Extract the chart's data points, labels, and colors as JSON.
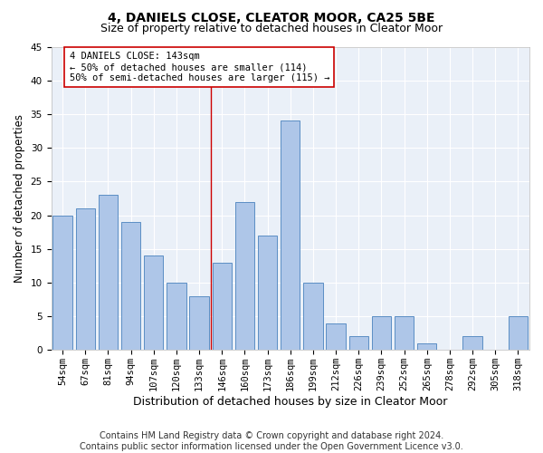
{
  "title": "4, DANIELS CLOSE, CLEATOR MOOR, CA25 5BE",
  "subtitle": "Size of property relative to detached houses in Cleator Moor",
  "xlabel": "Distribution of detached houses by size in Cleator Moor",
  "ylabel": "Number of detached properties",
  "categories": [
    "54sqm",
    "67sqm",
    "81sqm",
    "94sqm",
    "107sqm",
    "120sqm",
    "133sqm",
    "146sqm",
    "160sqm",
    "173sqm",
    "186sqm",
    "199sqm",
    "212sqm",
    "226sqm",
    "239sqm",
    "252sqm",
    "265sqm",
    "278sqm",
    "292sqm",
    "305sqm",
    "318sqm"
  ],
  "values": [
    20,
    21,
    23,
    19,
    14,
    10,
    8,
    13,
    22,
    17,
    34,
    10,
    4,
    2,
    5,
    5,
    1,
    0,
    2,
    0,
    5
  ],
  "bar_color": "#aec6e8",
  "bar_edge_color": "#5b8ec4",
  "vline_color": "#cc0000",
  "annotation_text": "4 DANIELS CLOSE: 143sqm\n← 50% of detached houses are smaller (114)\n50% of semi-detached houses are larger (115) →",
  "annotation_box_color": "#ffffff",
  "annotation_box_edge_color": "#cc0000",
  "ylim": [
    0,
    45
  ],
  "yticks": [
    0,
    5,
    10,
    15,
    20,
    25,
    30,
    35,
    40,
    45
  ],
  "background_color": "#eaf0f8",
  "footer": "Contains HM Land Registry data © Crown copyright and database right 2024.\nContains public sector information licensed under the Open Government Licence v3.0.",
  "title_fontsize": 10,
  "subtitle_fontsize": 9,
  "xlabel_fontsize": 9,
  "ylabel_fontsize": 8.5,
  "tick_fontsize": 7.5,
  "footer_fontsize": 7,
  "annot_fontsize": 7.5
}
